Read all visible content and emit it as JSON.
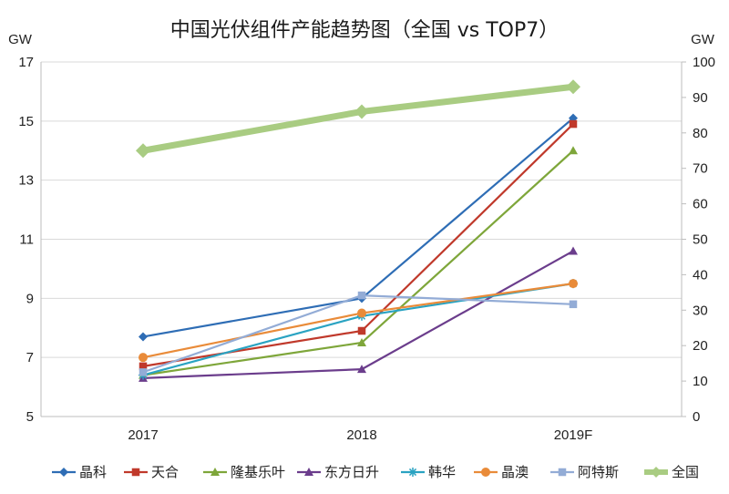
{
  "chart_data": {
    "type": "line",
    "title": "中国光伏组件产能趋势图（全国 vs TOP7）",
    "left_axis": {
      "unit_label": "GW",
      "ylim": [
        5,
        17
      ],
      "ticks": [
        "5",
        "7",
        "9",
        "11",
        "13",
        "15",
        "17"
      ]
    },
    "right_axis": {
      "unit_label": "GW",
      "ylim": [
        0,
        100
      ],
      "ticks": [
        "0",
        "10",
        "20",
        "30",
        "40",
        "50",
        "60",
        "70",
        "80",
        "90",
        "100"
      ]
    },
    "categories": [
      "2017",
      "2018",
      "2019F"
    ],
    "grid": true,
    "legend_position": "bottom",
    "series": [
      {
        "name": "晶科",
        "axis": "left",
        "color": "#2e6db5",
        "marker": "diamond",
        "values": [
          7.7,
          9.0,
          15.1
        ]
      },
      {
        "name": "天合",
        "axis": "left",
        "color": "#c0392b",
        "marker": "square",
        "values": [
          6.7,
          7.9,
          14.9
        ]
      },
      {
        "name": "隆基乐叶",
        "axis": "left",
        "color": "#7ea63a",
        "marker": "triangle",
        "values": [
          6.4,
          7.5,
          14.0
        ]
      },
      {
        "name": "东方日升",
        "axis": "left",
        "color": "#6b3d8c",
        "marker": "triangle",
        "values": [
          6.3,
          6.6,
          10.6
        ]
      },
      {
        "name": "韩华",
        "axis": "left",
        "color": "#2aa3c2",
        "marker": "star",
        "values": [
          6.4,
          8.4,
          9.5
        ]
      },
      {
        "name": "晶澳",
        "axis": "left",
        "color": "#e98b39",
        "marker": "circle",
        "values": [
          7.0,
          8.5,
          9.5
        ]
      },
      {
        "name": "阿特斯",
        "axis": "left",
        "color": "#93acd6",
        "marker": "square",
        "values": [
          6.5,
          9.1,
          8.8
        ]
      },
      {
        "name": "全国",
        "axis": "right",
        "color": "#a9cc82",
        "marker": "diamond",
        "values": [
          75,
          86,
          93
        ]
      }
    ]
  }
}
